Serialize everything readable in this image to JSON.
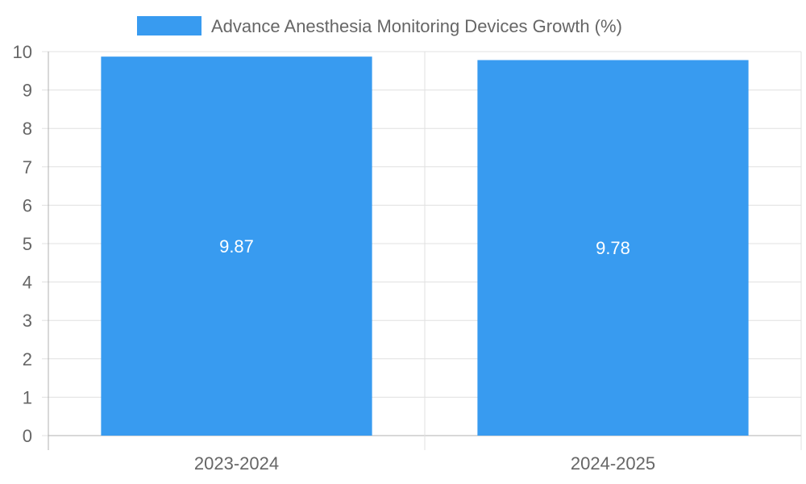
{
  "chart_data": {
    "type": "bar",
    "categories": [
      "2023-2024",
      "2024-2025"
    ],
    "series": [
      {
        "name": "Advance Anesthesia Monitoring Devices Growth (%)",
        "values": [
          9.87,
          9.78
        ],
        "color": "#389bf0"
      }
    ],
    "data_labels": [
      "9.87",
      "9.78"
    ],
    "y_ticks": [
      "0",
      "1",
      "2",
      "3",
      "4",
      "5",
      "6",
      "7",
      "8",
      "9",
      "10"
    ],
    "ylim": [
      0,
      10
    ],
    "grid": true,
    "legend_position": "top-center",
    "title": "",
    "xlabel": "",
    "ylabel": ""
  },
  "colors": {
    "grid": "#e0e0e0",
    "axis": "#b0b0b0",
    "text": "#666666",
    "label": "#ffffff"
  }
}
